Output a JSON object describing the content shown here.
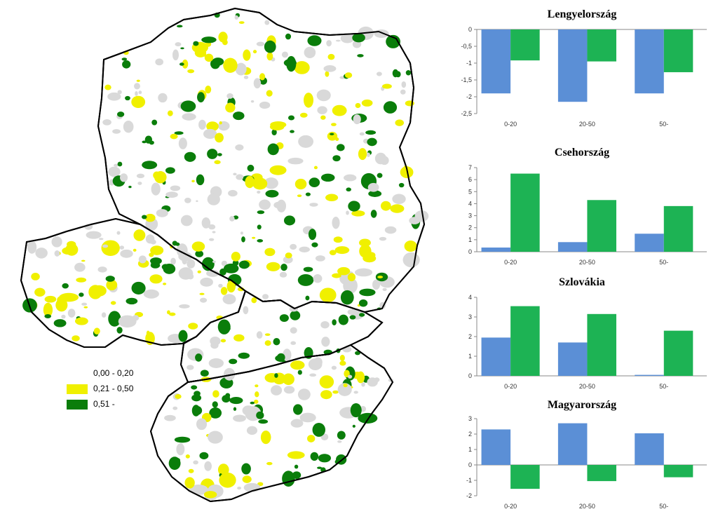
{
  "legend": [
    {
      "label": "0,00 - 0,20",
      "color": "#ffffff"
    },
    {
      "label": "0,21 - 0,50",
      "color": "#f0f000"
    },
    {
      "label": "0,51 -",
      "color": "#0a7d0a"
    }
  ],
  "colors": {
    "series_a": "#5b8fd6",
    "series_b": "#1db354",
    "grey_region": "#d9d9d9",
    "border": "#000000"
  },
  "chart_data": [
    {
      "type": "bar",
      "title": "Lengyelország",
      "categories": [
        "0-20",
        "20-50",
        "50-"
      ],
      "series": [
        {
          "values": [
            -1.9,
            -2.15,
            -1.9
          ]
        },
        {
          "values": [
            -0.92,
            -0.95,
            -1.27
          ]
        }
      ],
      "ylim": [
        -2.5,
        0
      ],
      "yticks": [
        "0",
        "-0,5",
        "-1",
        "-1,5",
        "-2",
        "-2,5"
      ]
    },
    {
      "type": "bar",
      "title": "Csehország",
      "categories": [
        "0-20",
        "20-50",
        "50-"
      ],
      "series": [
        {
          "values": [
            0.35,
            0.8,
            1.5
          ]
        },
        {
          "values": [
            6.5,
            4.3,
            3.8
          ]
        }
      ],
      "ylim": [
        0,
        7
      ],
      "yticks": [
        "7",
        "6",
        "5",
        "4",
        "3",
        "2",
        "1",
        "0"
      ]
    },
    {
      "type": "bar",
      "title": "Szlovákia",
      "categories": [
        "0-20",
        "20-50",
        "50-"
      ],
      "series": [
        {
          "values": [
            1.95,
            1.7,
            0.05
          ]
        },
        {
          "values": [
            3.55,
            3.15,
            2.3
          ]
        }
      ],
      "ylim": [
        0,
        4
      ],
      "yticks": [
        "4",
        "3",
        "2",
        "1",
        "0"
      ]
    },
    {
      "type": "bar",
      "title": "Magyarország",
      "categories": [
        "0-20",
        "20-50",
        "50-"
      ],
      "series": [
        {
          "values": [
            2.3,
            2.7,
            2.05
          ]
        },
        {
          "values": [
            -1.55,
            -1.05,
            -0.8
          ]
        }
      ],
      "ylim": [
        -2,
        3
      ],
      "yticks": [
        "3",
        "2",
        "1",
        "0",
        "-1",
        "-2"
      ]
    }
  ]
}
